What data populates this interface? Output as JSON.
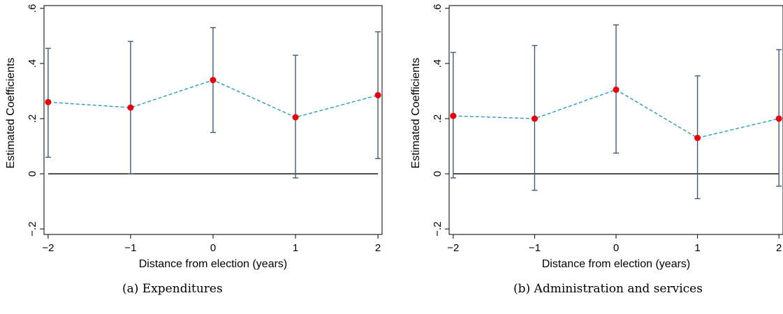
{
  "chart_data": [
    {
      "type": "line",
      "panel": "(a)",
      "caption": "(a) Expenditures",
      "xlabel": "Distance from election (years)",
      "ylabel": "Estimated Coefficients",
      "x": [
        -2,
        -1,
        0,
        1,
        2
      ],
      "x_tick_labels": [
        "−2",
        "−1",
        "0",
        "1",
        "2"
      ],
      "y_ticks": [
        -0.2,
        0,
        0.2,
        0.4,
        0.6
      ],
      "y_tick_labels": [
        "−.2",
        "0",
        ".2",
        ".4",
        ".6"
      ],
      "ylim": [
        -0.22,
        0.61
      ],
      "xlim": [
        -2.05,
        2.05
      ],
      "grid": false,
      "reference_line_y": 0,
      "series": [
        {
          "values": [
            0.26,
            0.24,
            0.34,
            0.205,
            0.285
          ],
          "ci_low": [
            0.06,
            0.0,
            0.15,
            -0.015,
            0.055
          ],
          "ci_high": [
            0.455,
            0.48,
            0.53,
            0.43,
            0.515
          ]
        }
      ],
      "colors": {
        "point": "#e8000b",
        "line": "#2a9bc0",
        "errorbar": "#3d5a7a",
        "zero_line": "#000000"
      }
    },
    {
      "type": "line",
      "panel": "(b)",
      "caption": "(b) Administration and services",
      "xlabel": "Distance from election (years)",
      "ylabel": "Estimated Coefficients",
      "x": [
        -2,
        -1,
        0,
        1,
        2
      ],
      "x_tick_labels": [
        "−2",
        "−1",
        "0",
        "1",
        "2"
      ],
      "y_ticks": [
        -0.2,
        0,
        0.2,
        0.4,
        0.6
      ],
      "y_tick_labels": [
        "−.2",
        "0",
        ".2",
        ".4",
        ".6"
      ],
      "ylim": [
        -0.22,
        0.61
      ],
      "xlim": [
        -2.05,
        2.05
      ],
      "grid": false,
      "reference_line_y": 0,
      "series": [
        {
          "values": [
            0.21,
            0.2,
            0.305,
            0.13,
            0.2
          ],
          "ci_low": [
            -0.015,
            -0.06,
            0.075,
            -0.09,
            -0.045
          ],
          "ci_high": [
            0.44,
            0.465,
            0.54,
            0.355,
            0.45
          ]
        }
      ],
      "colors": {
        "point": "#e8000b",
        "line": "#2a9bc0",
        "errorbar": "#3d5a7a",
        "zero_line": "#000000"
      }
    }
  ]
}
